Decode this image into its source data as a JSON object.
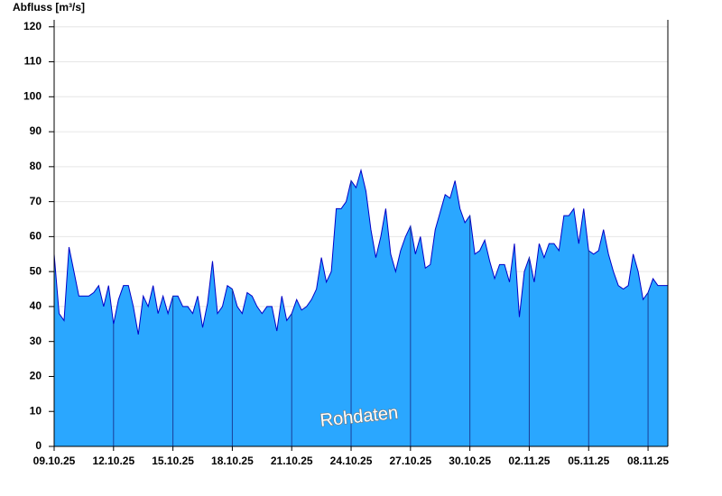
{
  "chart_data": {
    "type": "area",
    "title": "Abfluss [m³/s]",
    "watermark": "Rohdaten",
    "categories": [
      "09.10.25",
      null,
      null,
      null,
      null,
      null,
      null,
      null,
      null,
      null,
      null,
      null,
      "12.10.25",
      null,
      null,
      null,
      null,
      null,
      null,
      null,
      null,
      null,
      null,
      null,
      "15.10.25",
      null,
      null,
      null,
      null,
      null,
      null,
      null,
      null,
      null,
      null,
      null,
      "18.10.25",
      null,
      null,
      null,
      null,
      null,
      null,
      null,
      null,
      null,
      null,
      null,
      "21.10.25",
      null,
      null,
      null,
      null,
      null,
      null,
      null,
      null,
      null,
      null,
      null,
      "24.10.25",
      null,
      null,
      null,
      null,
      null,
      null,
      null,
      null,
      null,
      null,
      null,
      "27.10.25",
      null,
      null,
      null,
      null,
      null,
      null,
      null,
      null,
      null,
      null,
      null,
      "30.10.25",
      null,
      null,
      null,
      null,
      null,
      null,
      null,
      null,
      null,
      null,
      null,
      "02.11.25",
      null,
      null,
      null,
      null,
      null,
      null,
      null,
      null,
      null,
      null,
      null,
      "05.11.25",
      null,
      null,
      null,
      null,
      null,
      null,
      null,
      null,
      null,
      null,
      null,
      "08.11.25",
      null,
      null,
      null,
      null
    ],
    "values": [
      55,
      38,
      36,
      57,
      50,
      43,
      43,
      43,
      44,
      46,
      40,
      46,
      35,
      42,
      46,
      46,
      40,
      32,
      43,
      40,
      46,
      38,
      43,
      38,
      43,
      43,
      40,
      40,
      38,
      43,
      34,
      41,
      53,
      38,
      40,
      46,
      45,
      40,
      38,
      44,
      43,
      40,
      38,
      40,
      40,
      33,
      43,
      36,
      38,
      42,
      39,
      40,
      42,
      45,
      54,
      47,
      50,
      68,
      68,
      70,
      76,
      74,
      79,
      73,
      62,
      54,
      60,
      68,
      55,
      50,
      56,
      60,
      63,
      55,
      60,
      51,
      52,
      62,
      67,
      72,
      71,
      76,
      68,
      64,
      66,
      55,
      56,
      59,
      53,
      48,
      52,
      52,
      47,
      58,
      37,
      50,
      54,
      47,
      58,
      54,
      58,
      58,
      56,
      66,
      66,
      68,
      58,
      68,
      56,
      55,
      56,
      62,
      55,
      50,
      46,
      45,
      46,
      55,
      50,
      42,
      44,
      48,
      46,
      46,
      46
    ],
    "color": "#2aa7ff",
    "line_color": "#0000c8",
    "ylim": [
      0,
      122
    ],
    "yticks": [
      0,
      10,
      20,
      30,
      40,
      50,
      60,
      70,
      80,
      90,
      100,
      110,
      120
    ],
    "grid": true
  }
}
